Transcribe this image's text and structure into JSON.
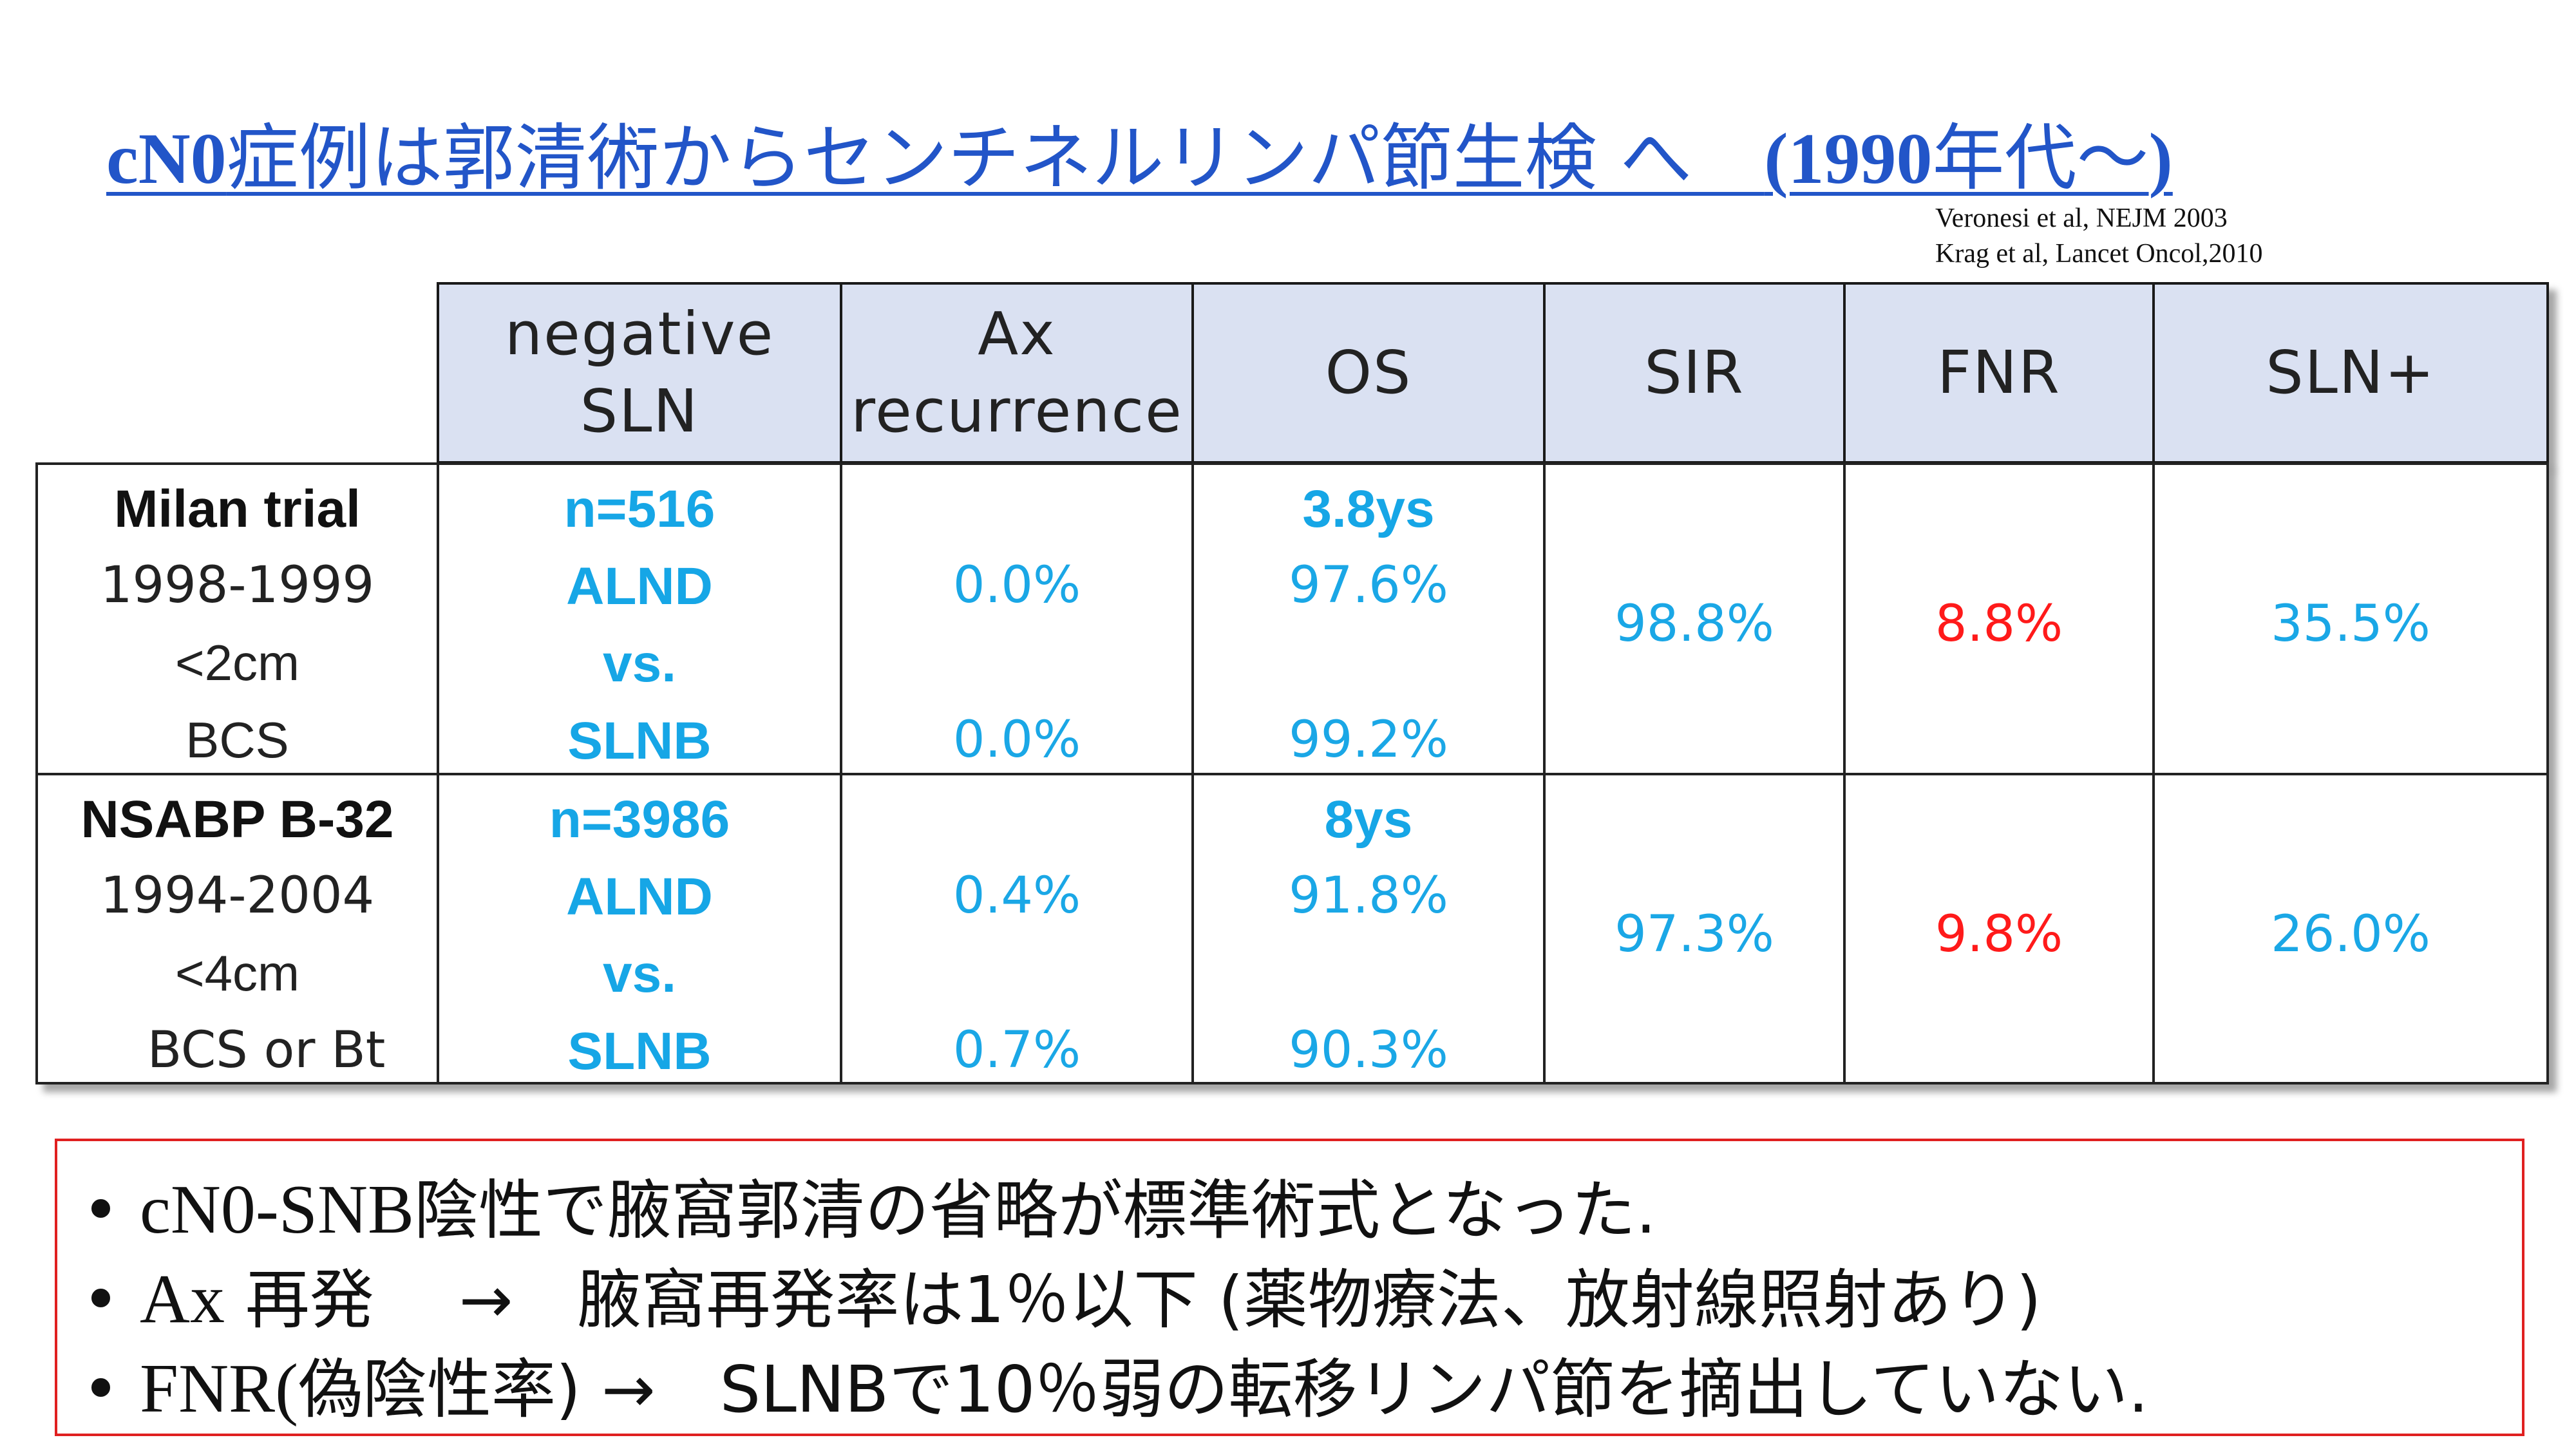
{
  "title": {
    "prefix": "cN0",
    "main": "症例は郭清術からセンチネルリンパ節生検 へ　",
    "paren_open": "(1990",
    "era": "年代〜",
    "paren_close": ")"
  },
  "references": [
    "Veronesi et al, NEJM 2003",
    "Krag et al, Lancet Oncol,2010"
  ],
  "table": {
    "headers": [
      "negative\nSLN",
      "Ax\nrecurrence",
      "OS",
      "SIR",
      "FNR",
      "SLN+"
    ],
    "rows": [
      {
        "trial": [
          "Milan trial",
          "1998-1999",
          "<2cm",
          "BCS"
        ],
        "sln": [
          "n=516",
          "ALND",
          "vs.",
          "SLNB"
        ],
        "ax": [
          "0.0%",
          "0.0%"
        ],
        "os": [
          "3.8ys",
          "97.6%",
          "99.2%"
        ],
        "sir": "98.8%",
        "fnr": "8.8%",
        "slnplus": "35.5%"
      },
      {
        "trial": [
          "NSABP B-32",
          "1994-2004",
          "<4cm",
          "BCS or Bt"
        ],
        "sln": [
          "n=3986",
          "ALND",
          "vs.",
          "SLNB"
        ],
        "ax": [
          "0.4%",
          "0.7%"
        ],
        "os": [
          "8ys",
          "91.8%",
          "90.3%"
        ],
        "sir": "97.3%",
        "fnr": "9.8%",
        "slnplus": "26.0%"
      }
    ]
  },
  "notes": [
    {
      "a": "cN0-SNB",
      "b": "陰性で腋窩郭清の省略が標準術式となった."
    },
    {
      "a": "Ax",
      "b": " 再発　 →　腋窩再発率は1％以下 (薬物療法、放射線照射あり)"
    },
    {
      "a": "FNR(",
      "b": "偽陰性率) →　SLNBで10％弱の転移リンパ節を摘出していない."
    }
  ],
  "colors": {
    "title": "#2255c8",
    "header_bg": "#dae1f2",
    "blue": "#1aa7e6",
    "red": "#ff1a1a",
    "note_border": "#e02020"
  }
}
